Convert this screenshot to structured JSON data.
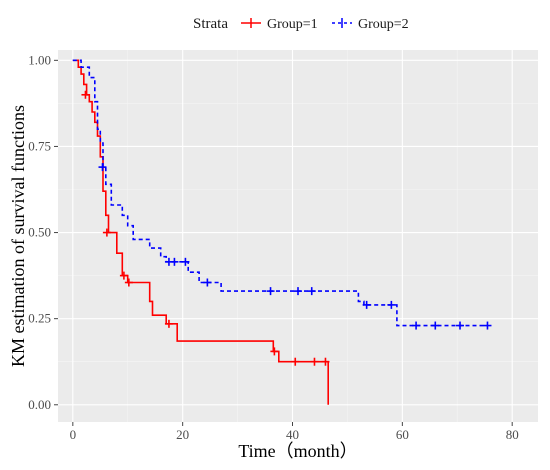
{
  "legend": {
    "title": "Strata",
    "items": [
      {
        "label": "Group=1",
        "color": "#ff0000",
        "linestyle": "solid"
      },
      {
        "label": "Group=2",
        "color": "#0000ff",
        "linestyle": "dashed"
      }
    ]
  },
  "chart_data": {
    "type": "line",
    "title": "",
    "xlabel": "Time（month）",
    "ylabel": "KM estimation of survival functions",
    "xlim": [
      -2.7,
      84.7
    ],
    "ylim": [
      -0.05,
      1.03
    ],
    "x_ticks": [
      0,
      20,
      40,
      60,
      80
    ],
    "x_tick_labels": [
      "0",
      "20",
      "40",
      "60",
      "80"
    ],
    "y_ticks": [
      0,
      0.25,
      0.5,
      0.75,
      1.0
    ],
    "y_tick_labels": [
      "0.00",
      "0.25",
      "0.50",
      "0.75",
      "1.00"
    ],
    "grid": true,
    "legend_position": "top",
    "series": [
      {
        "name": "Group=1",
        "color": "#ff0000",
        "linestyle": "solid",
        "steps": [
          [
            0,
            1.0
          ],
          [
            1,
            0.98
          ],
          [
            1.5,
            0.96
          ],
          [
            2,
            0.93
          ],
          [
            2.5,
            0.9
          ],
          [
            3,
            0.88
          ],
          [
            3.5,
            0.85
          ],
          [
            4,
            0.82
          ],
          [
            4.5,
            0.78
          ],
          [
            5,
            0.72
          ],
          [
            5.5,
            0.62
          ],
          [
            6,
            0.55
          ],
          [
            6.5,
            0.5
          ],
          [
            8,
            0.44
          ],
          [
            9,
            0.375
          ],
          [
            10,
            0.355
          ],
          [
            13,
            0.355
          ],
          [
            14,
            0.3
          ],
          [
            14.5,
            0.26
          ],
          [
            17,
            0.235
          ],
          [
            19,
            0.185
          ],
          [
            36,
            0.185
          ],
          [
            36.5,
            0.155
          ],
          [
            37.5,
            0.125
          ],
          [
            44,
            0.125
          ],
          [
            46.5,
            0.125
          ],
          [
            46.5,
            0.0
          ]
        ],
        "censored": [
          [
            2.3,
            0.9
          ],
          [
            6.2,
            0.5
          ],
          [
            9.3,
            0.375
          ],
          [
            10.2,
            0.355
          ],
          [
            17.5,
            0.235
          ],
          [
            36.7,
            0.155
          ],
          [
            40.5,
            0.125
          ],
          [
            44,
            0.125
          ],
          [
            46,
            0.125
          ]
        ]
      },
      {
        "name": "Group=2",
        "color": "#0000ff",
        "linestyle": "dashed",
        "steps": [
          [
            0,
            1.0
          ],
          [
            1.5,
            0.98
          ],
          [
            3,
            0.95
          ],
          [
            4,
            0.88
          ],
          [
            4.5,
            0.8
          ],
          [
            5,
            0.76
          ],
          [
            5.5,
            0.69
          ],
          [
            6,
            0.64
          ],
          [
            7,
            0.58
          ],
          [
            9,
            0.55
          ],
          [
            10,
            0.52
          ],
          [
            11,
            0.48
          ],
          [
            14,
            0.455
          ],
          [
            16,
            0.43
          ],
          [
            17,
            0.415
          ],
          [
            21,
            0.385
          ],
          [
            23,
            0.355
          ],
          [
            27,
            0.33
          ],
          [
            51,
            0.33
          ],
          [
            52,
            0.3
          ],
          [
            53,
            0.29
          ],
          [
            58.5,
            0.29
          ],
          [
            59,
            0.23
          ],
          [
            75.5,
            0.23
          ]
        ],
        "censored": [
          [
            5.4,
            0.69
          ],
          [
            17.5,
            0.415
          ],
          [
            18.5,
            0.415
          ],
          [
            20.5,
            0.415
          ],
          [
            24.5,
            0.355
          ],
          [
            36,
            0.33
          ],
          [
            41,
            0.33
          ],
          [
            43.5,
            0.33
          ],
          [
            53.5,
            0.29
          ],
          [
            58,
            0.29
          ],
          [
            62.5,
            0.23
          ],
          [
            66,
            0.23
          ],
          [
            70.5,
            0.23
          ],
          [
            75.5,
            0.23
          ]
        ]
      }
    ]
  }
}
